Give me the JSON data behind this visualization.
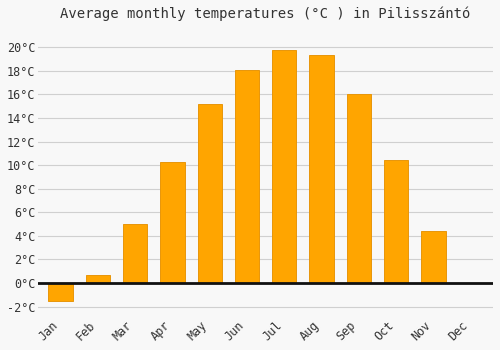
{
  "title": "Average monthly temperatures (°C ) in Pilisszántó",
  "months": [
    "Jan",
    "Feb",
    "Mar",
    "Apr",
    "May",
    "Jun",
    "Jul",
    "Aug",
    "Sep",
    "Oct",
    "Nov",
    "Dec"
  ],
  "values": [
    -1.5,
    0.7,
    5.0,
    10.3,
    15.2,
    18.1,
    19.8,
    19.3,
    16.0,
    10.4,
    4.4,
    0.0
  ],
  "bar_color": "#FFA500",
  "bar_edge_color": "#E8960A",
  "background_color": "#f8f8f8",
  "grid_color": "#d0d0d0",
  "zero_line_color": "#111111",
  "text_color": "#333333",
  "ylim": [
    -2.8,
    21.5
  ],
  "yticks": [
    -2,
    0,
    2,
    4,
    6,
    8,
    10,
    12,
    14,
    16,
    18,
    20
  ],
  "title_fontsize": 10,
  "tick_fontsize": 8.5,
  "bar_width": 0.65
}
